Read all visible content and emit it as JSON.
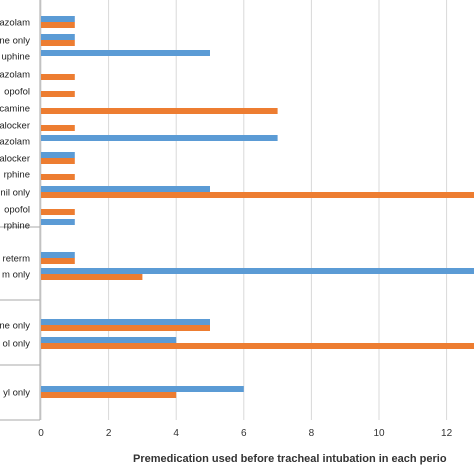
{
  "chart_data": {
    "type": "bar",
    "orientation": "horizontal",
    "xlabel": "Premedication used  before tracheal intubation in each perio",
    "xlim": [
      0,
      14
    ],
    "xticks": [
      0,
      2,
      4,
      6,
      8,
      10,
      12
    ],
    "xtick_labels": [
      "0",
      "2",
      "4",
      "6",
      "8",
      "10",
      "12"
    ],
    "grid": "vertical",
    "colors": {
      "series_blue": "#5b9bd5",
      "series_orange": "#ed7d31",
      "grid": "#d9d9d9",
      "group_line": "#aaaaaa"
    },
    "categories": [
      "azolam",
      "ne only",
      "uphine",
      "azolam",
      "opofol",
      "camine",
      "alocker",
      "azolam",
      "alocker",
      "rphine",
      "nil only",
      "opofol",
      "rphine",
      "reterm",
      "m only",
      "ne only",
      "ol only",
      "yl only"
    ],
    "series": [
      {
        "values": [
          1,
          1,
          5,
          0,
          0,
          0,
          0,
          7,
          1,
          0,
          5,
          0,
          1,
          1,
          14,
          5,
          4,
          6
        ]
      },
      {
        "values": [
          1,
          1,
          0,
          1,
          1,
          7,
          1,
          0,
          1,
          1,
          14,
          1,
          0,
          1,
          3,
          5,
          14,
          4
        ]
      }
    ]
  }
}
